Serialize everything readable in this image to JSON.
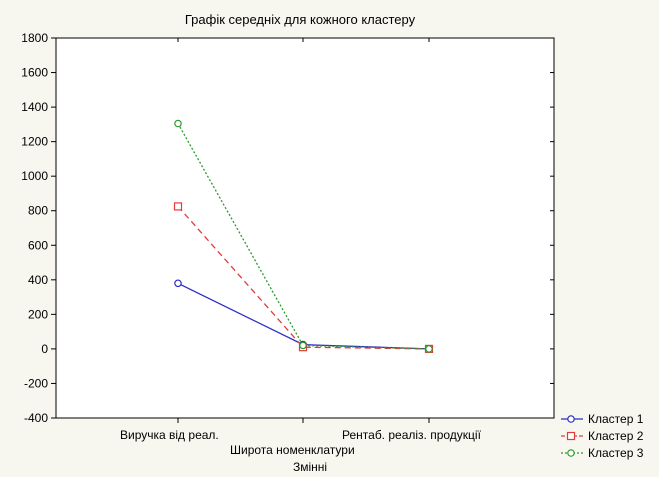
{
  "chart_data": {
    "type": "line",
    "title": "Графік середніх для кожного кластеру",
    "xlabel": "Змінні",
    "ylabel": "",
    "categories": [
      "Виручка від реал.",
      "Широта номенклатури",
      "Рентаб. реаліз. продукції"
    ],
    "ylim": [
      -400,
      1800
    ],
    "yticks": [
      -400,
      -200,
      0,
      200,
      400,
      600,
      800,
      1000,
      1200,
      1400,
      1600,
      1800
    ],
    "grid": false,
    "legend_position": "bottom-right",
    "series": [
      {
        "name": "Кластер 1",
        "values": [
          380,
          25,
          0
        ],
        "color": "#2b2bc8",
        "marker": "circle",
        "dash": "solid"
      },
      {
        "name": "Кластер 2",
        "values": [
          825,
          10,
          0
        ],
        "color": "#e03c3c",
        "marker": "square",
        "dash": "dashed"
      },
      {
        "name": "Кластер 3",
        "values": [
          1305,
          20,
          0
        ],
        "color": "#2a9a2a",
        "marker": "circle",
        "dash": "dotted"
      }
    ]
  }
}
